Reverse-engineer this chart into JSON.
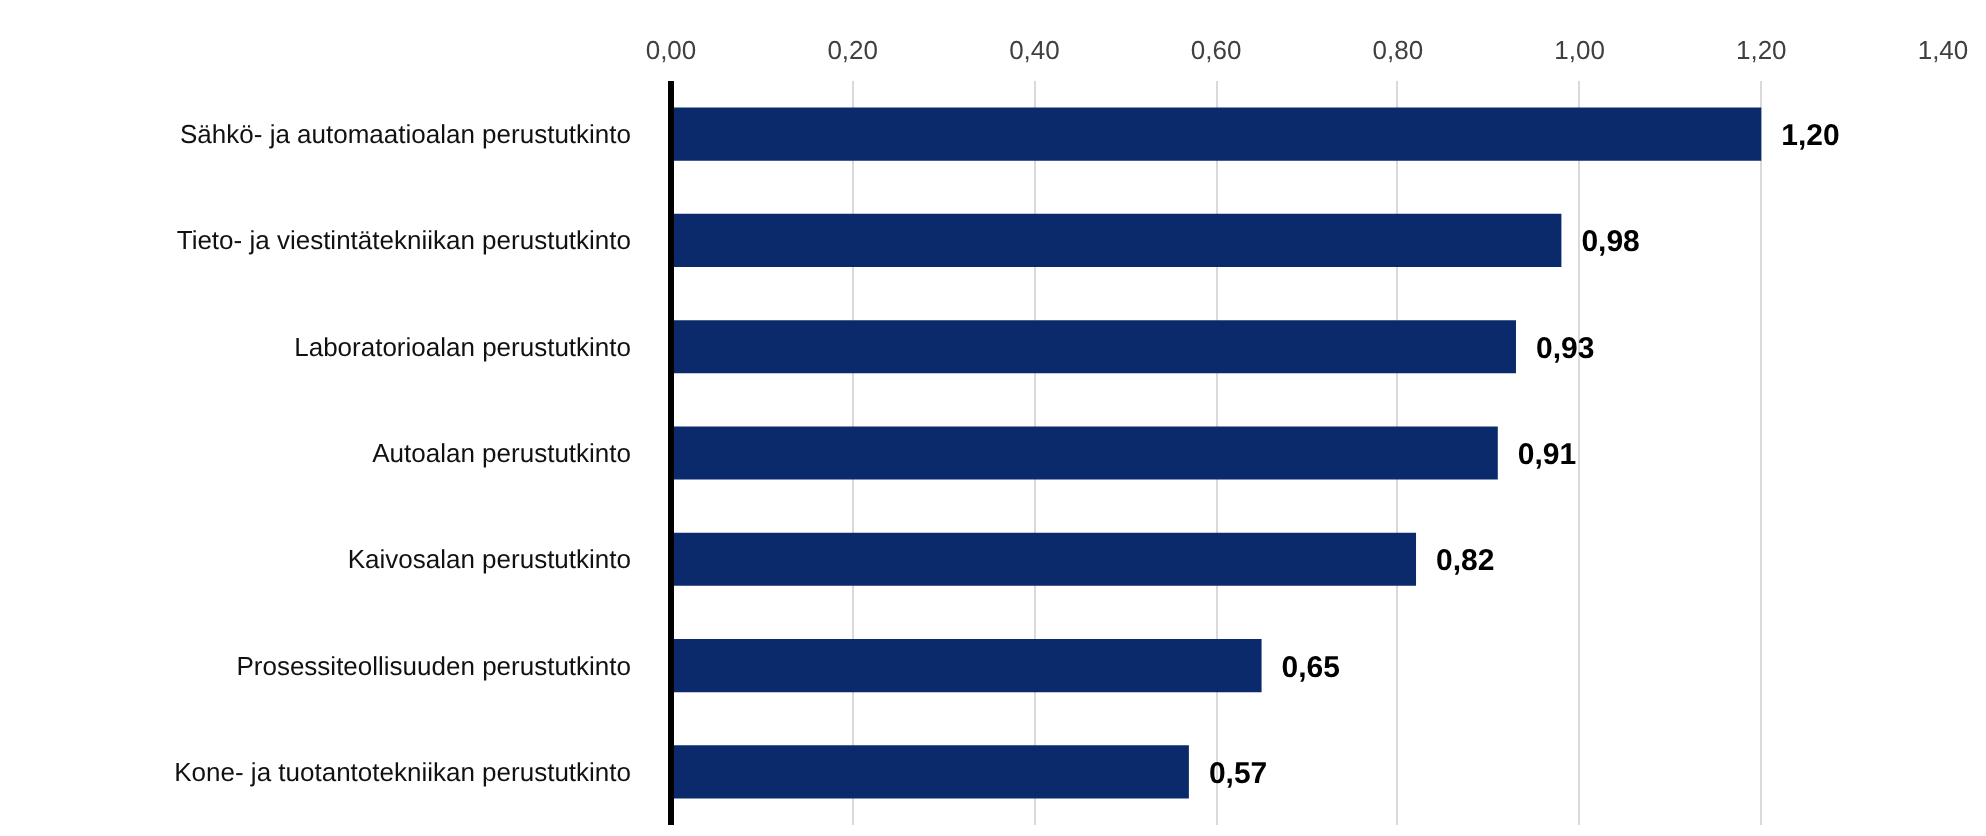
{
  "chart_data": {
    "type": "bar",
    "orientation": "horizontal",
    "categories": [
      "Sähkö- ja automaatioalan perustutkinto",
      "Tieto- ja viestintätekniikan perustutkinto",
      "Laboratorioalan perustutkinto",
      "Autoalan perustutkinto",
      "Kaivosalan perustutkinto",
      "Prosessiteollisuuden perustutkinto",
      "Kone- ja tuotantotekniikan perustutkinto"
    ],
    "values": [
      1.2,
      0.98,
      0.93,
      0.91,
      0.82,
      0.65,
      0.57
    ],
    "value_labels": [
      "1,20",
      "0,98",
      "0,93",
      "0,91",
      "0,82",
      "0,65",
      "0,57"
    ],
    "color": "#0b2a6b",
    "xlim": [
      0,
      1.4
    ],
    "xticks": [
      {
        "value": 0,
        "label": "0,00"
      },
      {
        "value": 0.2,
        "label": "0,20"
      },
      {
        "value": 0.4,
        "label": "0,40"
      },
      {
        "value": 0.6,
        "label": "0,60"
      },
      {
        "value": 0.8,
        "label": "0,80"
      },
      {
        "value": 1.0,
        "label": "1,00"
      },
      {
        "value": 1.2,
        "label": "1,20"
      },
      {
        "value": 1.4,
        "label": "1,40"
      }
    ],
    "grid": "x"
  }
}
